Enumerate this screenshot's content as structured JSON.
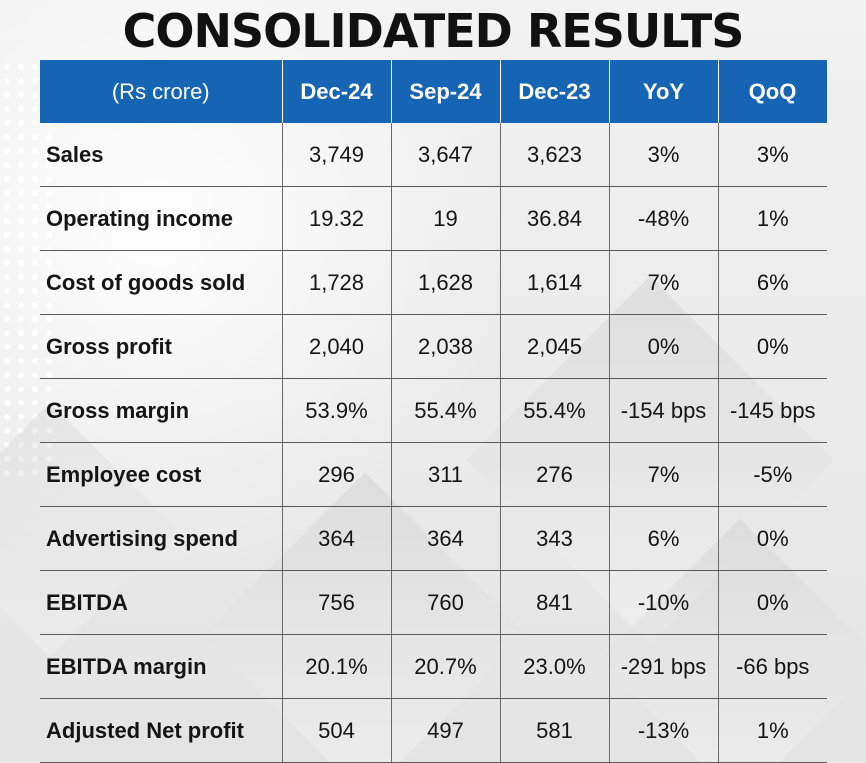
{
  "title": "CONSOLIDATED RESULTS",
  "colors": {
    "header_bg": "#1565b4",
    "header_text": "#ffffff",
    "title": "#111111"
  },
  "table": {
    "headers": [
      "(Rs crore)",
      "Dec-24",
      "Sep-24",
      "Dec-23",
      "YoY",
      "QoQ"
    ],
    "rows": [
      [
        "Sales",
        "3,749",
        "3,647",
        "3,623",
        "3%",
        "3%"
      ],
      [
        "Operating income",
        "19.32",
        "19",
        "36.84",
        "-48%",
        "1%"
      ],
      [
        "Cost of goods sold",
        "1,728",
        "1,628",
        "1,614",
        "7%",
        "6%"
      ],
      [
        "Gross profit",
        "2,040",
        "2,038",
        "2,045",
        "0%",
        "0%"
      ],
      [
        "Gross margin",
        "53.9%",
        "55.4%",
        "55.4%",
        "-154 bps",
        "-145 bps"
      ],
      [
        "Employee cost",
        "296",
        "311",
        "276",
        "7%",
        "-5%"
      ],
      [
        "Advertising spend",
        "364",
        "364",
        "343",
        "6%",
        "0%"
      ],
      [
        "EBITDA",
        "756",
        "760",
        "841",
        "-10%",
        "0%"
      ],
      [
        "EBITDA margin",
        "20.1%",
        "20.7%",
        "23.0%",
        "-291 bps",
        "-66 bps"
      ],
      [
        "Adjusted Net profit",
        "504",
        "497",
        "581",
        "-13%",
        "1%"
      ]
    ]
  }
}
